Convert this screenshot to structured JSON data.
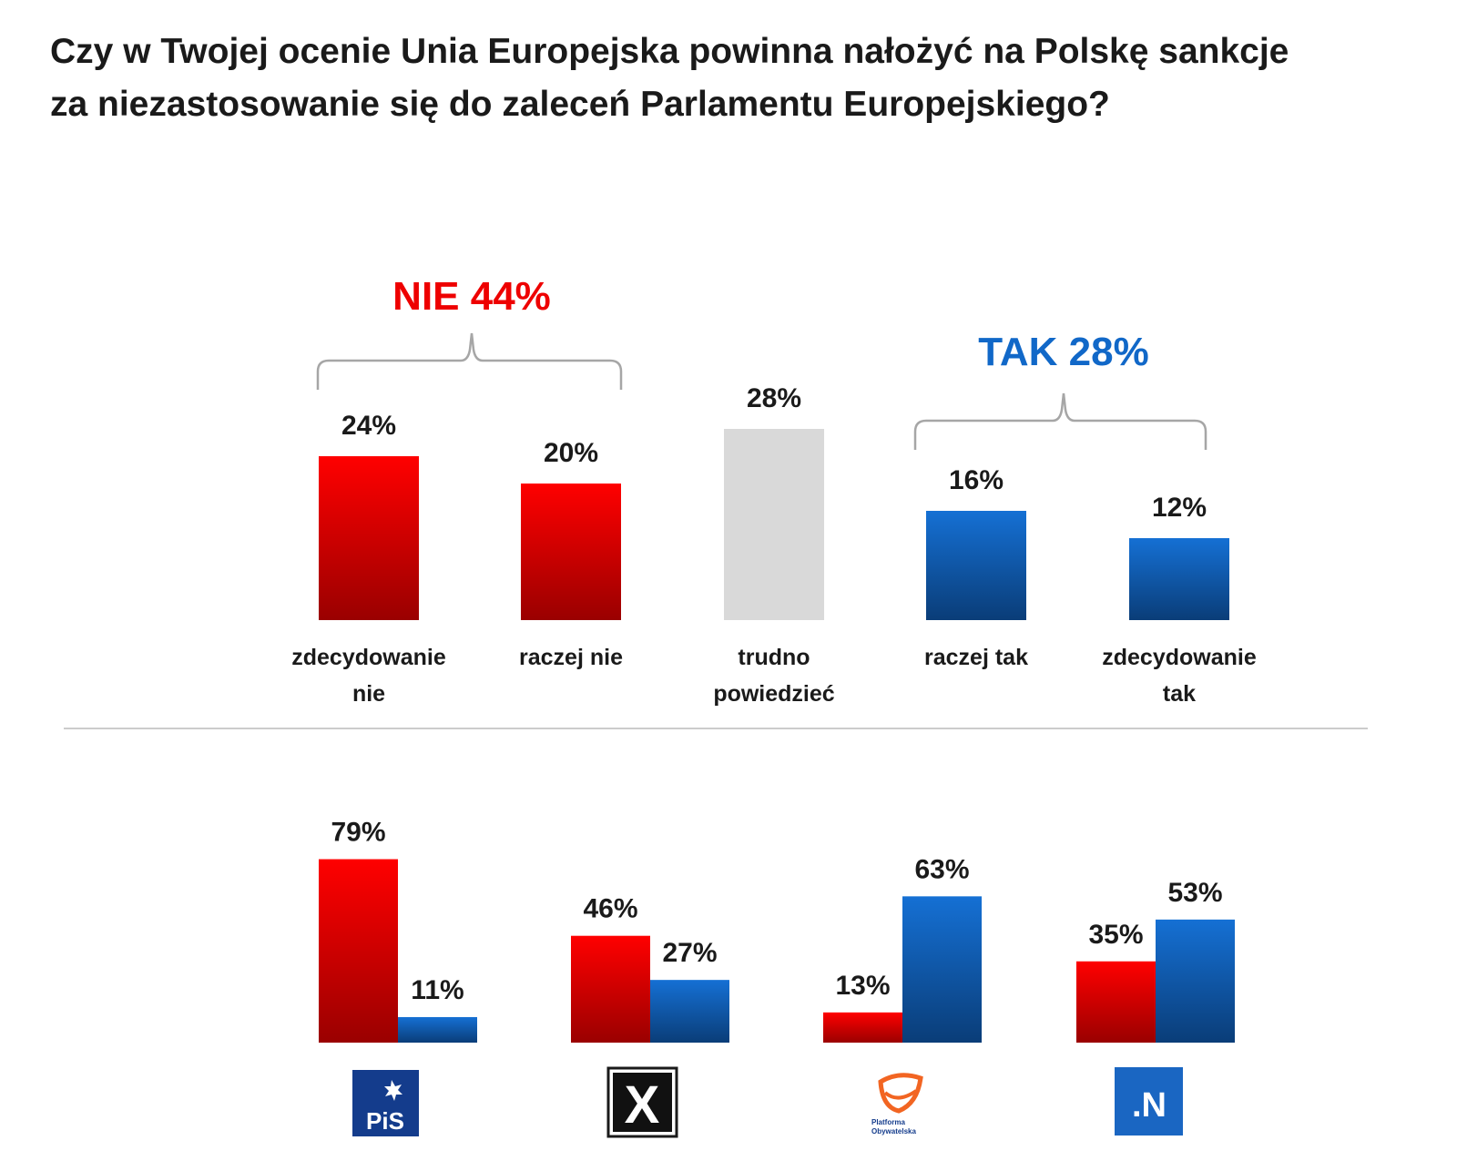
{
  "title": {
    "line1": "Czy w Twojej ocenie Unia Europejska powinna nałożyć na Polskę sankcje",
    "line2": "za niezastosowanie się do zaleceń Parlamentu Europejskiego?"
  },
  "colors": {
    "no": "#ee0000",
    "no_dark": "#9a0000",
    "yes": "#1168c8",
    "yes_dark": "#0a3d78",
    "neutral": "#d9d9d9",
    "divider": "#cccccc",
    "bracket": "#a6a6a6"
  },
  "groups": {
    "no": {
      "label": "NIE 44%",
      "color": "#ee0000"
    },
    "yes": {
      "label": "TAK 28%",
      "color": "#1168c8"
    }
  },
  "chart_data": [
    {
      "type": "bar",
      "categories": [
        [
          "zdecydowanie",
          "nie"
        ],
        [
          "raczej nie"
        ],
        [
          "trudno",
          "powiedzieć"
        ],
        [
          "raczej tak"
        ],
        [
          "zdecydowanie",
          "tak"
        ]
      ],
      "values": [
        24,
        20,
        28,
        16,
        12
      ],
      "value_labels": [
        "24%",
        "20%",
        "28%",
        "16%",
        "12%"
      ],
      "bar_colors": [
        "no",
        "no",
        "neutral",
        "yes",
        "yes"
      ],
      "unit": "%"
    },
    {
      "type": "bar",
      "categories": [
        "PiS",
        "Kukiz'15",
        "Platforma Obywatelska",
        ".N"
      ],
      "series": [
        {
          "color": "no",
          "values": [
            79,
            46,
            13,
            35
          ],
          "value_labels": [
            "79%",
            "46%",
            "13%",
            "35%"
          ]
        },
        {
          "color": "yes",
          "values": [
            11,
            27,
            63,
            53
          ],
          "value_labels": [
            "11%",
            "27%",
            "63%",
            "53%"
          ]
        }
      ],
      "unit": "%"
    }
  ],
  "logos": {
    "pis": {
      "text": "PiS",
      "icon": "pis-logo"
    },
    "kukiz": {
      "text": "X",
      "icon": "kukiz-logo"
    },
    "po": {
      "text_line1": "Platforma",
      "text_line2": "Obywatelska",
      "icon": "po-logo"
    },
    "nowoczesna": {
      "text": ".N",
      "icon": "nowoczesna-logo"
    }
  }
}
